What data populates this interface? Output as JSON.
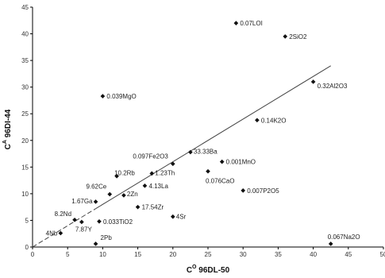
{
  "chart_data": {
    "type": "scatter",
    "title": "",
    "xlabel": {
      "base": "C",
      "sup": "O",
      "rest": " 96DL-50"
    },
    "ylabel": {
      "base": "C",
      "sup": "A",
      "rest": " 96DI-44"
    },
    "xlim": [
      0,
      50
    ],
    "ylim": [
      0,
      45
    ],
    "xticks": [
      0,
      5,
      10,
      15,
      20,
      25,
      30,
      35,
      40,
      45,
      50
    ],
    "yticks": [
      0,
      5,
      10,
      15,
      20,
      25,
      30,
      35,
      40,
      45
    ],
    "grid": false,
    "legend": "none",
    "trendline": {
      "style": "solid",
      "from": [
        0,
        0
      ],
      "to": [
        42.5,
        34
      ],
      "dashed_segment_to": [
        9,
        7.2
      ]
    },
    "points": [
      {
        "label": "0.07LOI",
        "x": 29,
        "y": 42
      },
      {
        "label": "2SiO2",
        "x": 36,
        "y": 39.5
      },
      {
        "label": "0.32Al2O3",
        "x": 40,
        "y": 31
      },
      {
        "label": "0.039MgO",
        "x": 10,
        "y": 28.3
      },
      {
        "label": "0.14K2O",
        "x": 32,
        "y": 23.8
      },
      {
        "label": "33.33Ba",
        "x": 22.5,
        "y": 17.8
      },
      {
        "label": "0.097Fe2O3",
        "x": 20,
        "y": 15.6
      },
      {
        "label": "0.001MnO",
        "x": 27,
        "y": 16
      },
      {
        "label": "0.076CaO",
        "x": 25,
        "y": 14.2
      },
      {
        "label": "1.23Th",
        "x": 17,
        "y": 13.8
      },
      {
        "label": "10.2Rb",
        "x": 12,
        "y": 13.3
      },
      {
        "label": "4.13La",
        "x": 16,
        "y": 11.5
      },
      {
        "label": "9.62Ce",
        "x": 11,
        "y": 9.9
      },
      {
        "label": "2Zn",
        "x": 13,
        "y": 9.7
      },
      {
        "label": "0.007P2O5",
        "x": 30,
        "y": 10.6
      },
      {
        "label": "1.67Ga",
        "x": 9,
        "y": 8.5
      },
      {
        "label": "17.54Zr",
        "x": 15,
        "y": 7.5
      },
      {
        "label": "8.2Nd",
        "x": 6,
        "y": 5.1
      },
      {
        "label": "0.033TiO2",
        "x": 9.5,
        "y": 4.8
      },
      {
        "label": "4Sr",
        "x": 20,
        "y": 5.7
      },
      {
        "label": "7.87Y",
        "x": 7,
        "y": 4.7
      },
      {
        "label": "4Nb",
        "x": 4,
        "y": 2.6
      },
      {
        "label": "2Pb",
        "x": 9,
        "y": 0.6
      },
      {
        "label": "0.067Na2O",
        "x": 42.5,
        "y": 0.6
      }
    ]
  }
}
